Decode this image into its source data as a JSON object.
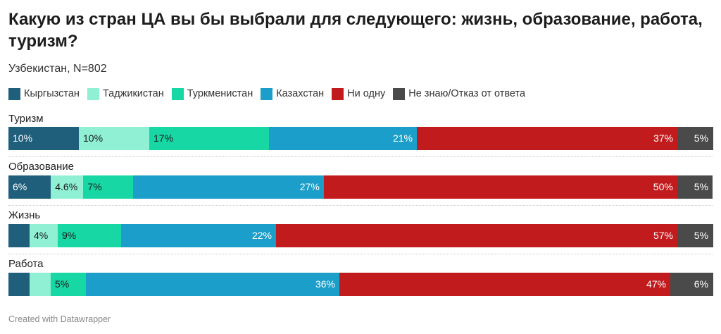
{
  "title": "Какую из стран ЦА вы бы выбрали для следующего: жизнь, образование, работа, туризм?",
  "subtitle": "Узбекистан, N=802",
  "footer": "Created with Datawrapper",
  "colors": {
    "Кыргызстан": "#1f5f7c",
    "Таджикистан": "#8ff0d3",
    "Туркменистан": "#17d7a4",
    "Казахстан": "#1b9ec9",
    "Ни одну": "#c21b1d",
    "Не знаю/Отказ от ответа": "#4a4a4a"
  },
  "chart_data": {
    "type": "bar",
    "orientation": "horizontal",
    "stacked": true,
    "legend_position": "top-left",
    "categories": [
      "Туризм",
      "Образование",
      "Жизнь",
      "Работа"
    ],
    "series": [
      {
        "name": "Кыргызстан",
        "values": [
          10,
          6,
          3,
          3
        ],
        "labels": [
          "10%",
          "6%",
          "",
          ""
        ]
      },
      {
        "name": "Таджикистан",
        "values": [
          10,
          4.6,
          4,
          3
        ],
        "labels": [
          "10%",
          "4.6%",
          "4%",
          ""
        ]
      },
      {
        "name": "Туркменистан",
        "values": [
          17,
          7,
          9,
          5
        ],
        "labels": [
          "17%",
          "7%",
          "9%",
          "5%"
        ]
      },
      {
        "name": "Казахстан",
        "values": [
          21,
          27,
          22,
          36
        ],
        "labels": [
          "21%",
          "27%",
          "22%",
          "36%"
        ]
      },
      {
        "name": "Ни одну",
        "values": [
          37,
          50,
          57,
          47
        ],
        "labels": [
          "37%",
          "50%",
          "57%",
          "47%"
        ]
      },
      {
        "name": "Не знаю/Отказ от ответа",
        "values": [
          5,
          5,
          5,
          6
        ],
        "labels": [
          "5%",
          "5%",
          "5%",
          "6%"
        ]
      }
    ]
  }
}
